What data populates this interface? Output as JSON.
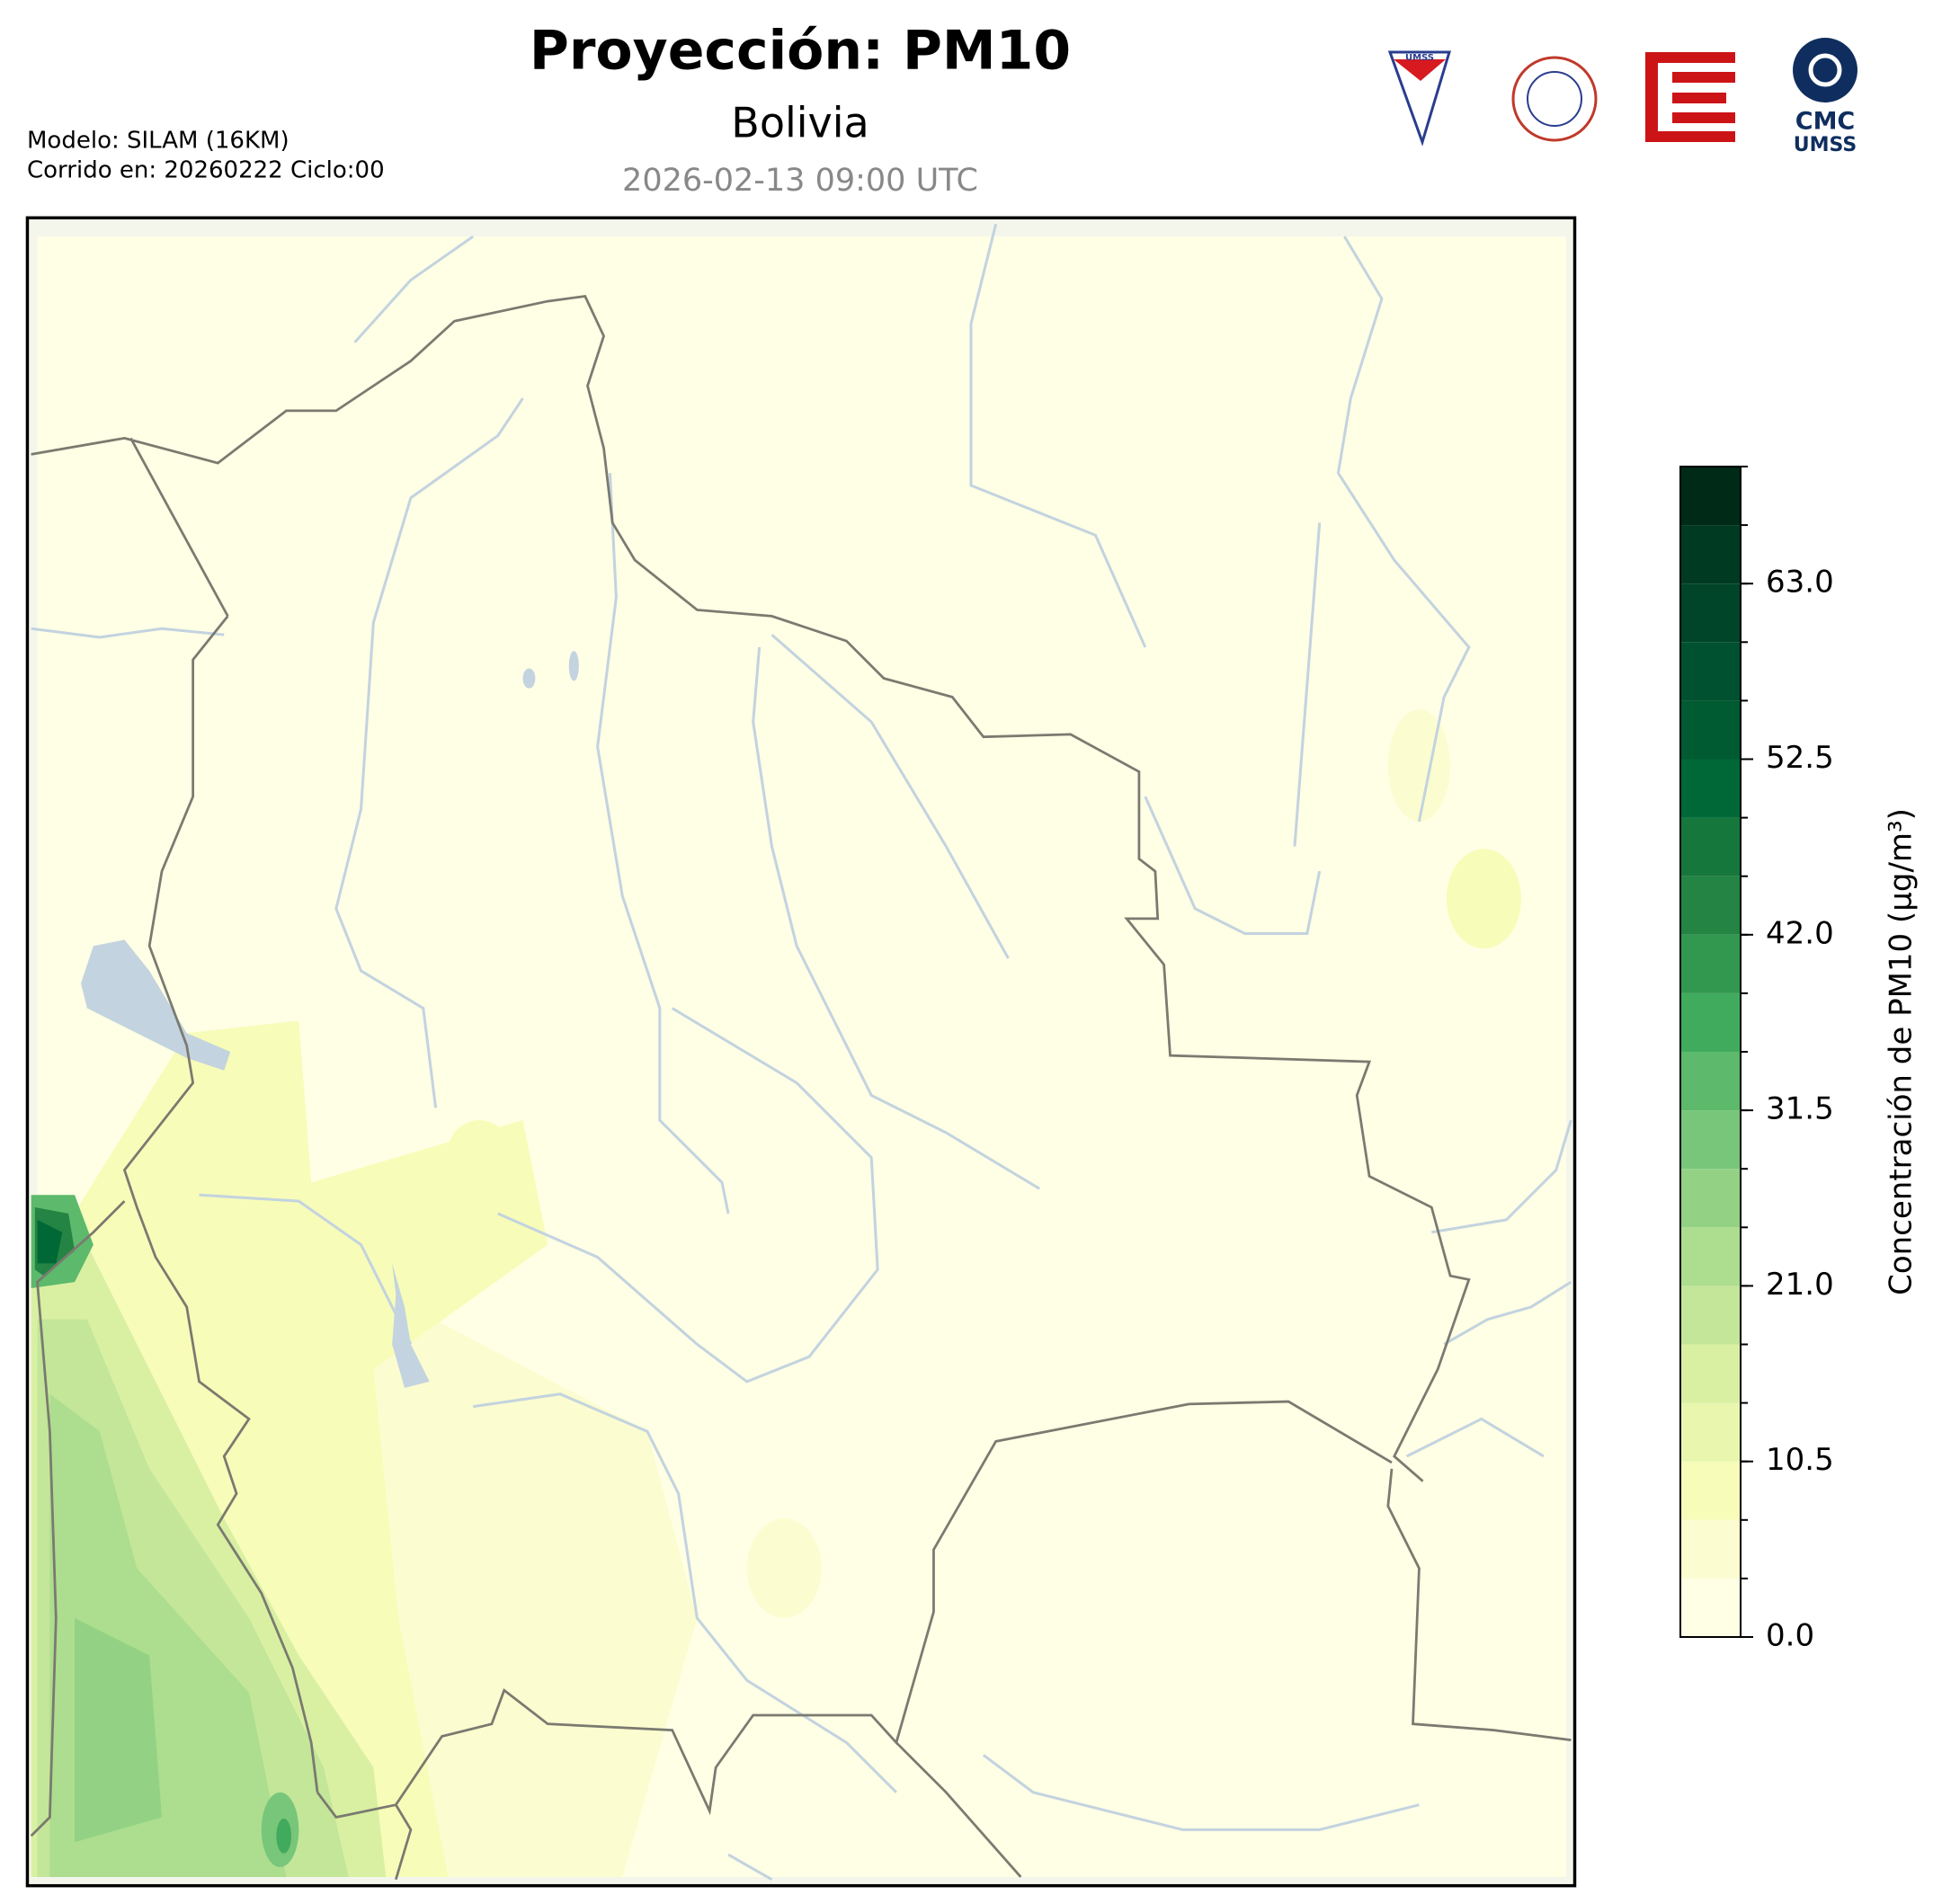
{
  "header": {
    "title": "Proyección: PM10",
    "subtitle": "Bolivia",
    "timestamp": "2026-02-13 09:00 UTC",
    "model": "Modelo: SILAM (16KM)",
    "run": "Corrido en: 20260222 Ciclo:00"
  },
  "logos": {
    "shield": "UMSS",
    "cmc": "CMC",
    "umss": "UMSS"
  },
  "colorbar": {
    "label": "Concentración de PM10 (µg/m³)",
    "lim": [
      0,
      70
    ],
    "levels": [
      0,
      3.5,
      7,
      10.5,
      14,
      17.5,
      21,
      24.5,
      28,
      31.5,
      35,
      38.5,
      42,
      45.5,
      49,
      52.5,
      56,
      59.5,
      63,
      66.5,
      70
    ],
    "colors": [
      "#ffffe5",
      "#fbfdd0",
      "#f7fcb9",
      "#e8f6ae",
      "#d9f0a3",
      "#c3e699",
      "#addd8e",
      "#93d284",
      "#78c679",
      "#5db96b",
      "#41ab5d",
      "#329850",
      "#238443",
      "#16773d",
      "#006837",
      "#005a32",
      "#00512f",
      "#004529",
      "#003a22",
      "#002a18"
    ],
    "ticks": [
      {
        "value": 0,
        "label": "0.0"
      },
      {
        "value": 10.5,
        "label": "10.5"
      },
      {
        "value": 21,
        "label": "21.0"
      },
      {
        "value": 31.5,
        "label": "31.5"
      },
      {
        "value": 42,
        "label": "42.0"
      },
      {
        "value": 52.5,
        "label": "52.5"
      },
      {
        "value": 63,
        "label": "63.0"
      }
    ]
  }
}
